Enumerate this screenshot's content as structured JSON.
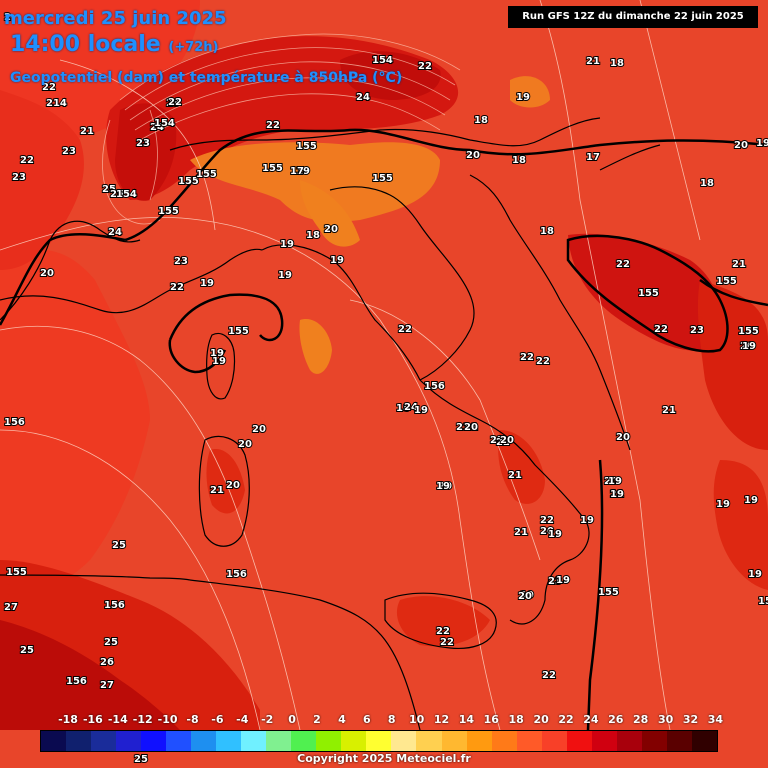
{
  "header": {
    "date_line": "mercredi 25 juin 2025",
    "time_line": "14:00 locale",
    "time_offset": "(+72h)",
    "parameter_line": "Geopotentiel (dam) et température à 850hPa (°C)",
    "run_info": "Run GFS 12Z du dimanche 22 juin 2025"
  },
  "legend": {
    "ticks": [
      "-18",
      "-16",
      "-14",
      "-12",
      "-10",
      "-8",
      "-6",
      "-4",
      "-2",
      "0",
      "2",
      "4",
      "6",
      "8",
      "10",
      "12",
      "14",
      "16",
      "18",
      "20",
      "22",
      "24",
      "26",
      "28",
      "30",
      "32",
      "34"
    ],
    "colors": [
      "#0a0a50",
      "#10206e",
      "#1a2c9a",
      "#2020d0",
      "#1010ff",
      "#2050ff",
      "#1e8ff0",
      "#30c0ff",
      "#70f0ff",
      "#80f090",
      "#50f050",
      "#90f000",
      "#d8f000",
      "#ffff30",
      "#ffe890",
      "#ffd050",
      "#ffb830",
      "#ff9a10",
      "#ff7a18",
      "#ff5a28",
      "#f84028",
      "#f01010",
      "#d00010",
      "#a8000c",
      "#820000",
      "#5a0000",
      "#300000"
    ]
  },
  "copyright": "Copyright 2025 Meteociel.fr",
  "map_labels": {
    "temperature": [
      "2",
      "22",
      "214",
      "21",
      "22",
      "23",
      "23",
      "25",
      "25",
      "24",
      "20",
      "23",
      "23",
      "22",
      "22",
      "24",
      "24",
      "23",
      "22",
      "22",
      "20",
      "19",
      "18",
      "18",
      "18",
      "17",
      "18",
      "20",
      "19",
      "18",
      "19",
      "19",
      "19",
      "19",
      "19",
      "19",
      "20",
      "20",
      "21",
      "20",
      "18",
      "22",
      "21",
      "21",
      "22",
      "20",
      "21",
      "22",
      "20",
      "19",
      "20",
      "21",
      "20",
      "22",
      "21",
      "22",
      "22",
      "23",
      "21",
      "20",
      "19",
      "19",
      "19",
      "19",
      "21",
      "22",
      "23",
      "22",
      "25",
      "26",
      "25",
      "27",
      "27",
      "25",
      "25",
      "24",
      "19",
      "19",
      "17",
      "20",
      "19",
      "18",
      "22",
      "19",
      "22",
      "22",
      "21",
      "20",
      "19",
      "19",
      "20",
      "20",
      "19",
      "19"
    ],
    "geopotential": [
      "154",
      "154",
      "154",
      "155",
      "155",
      "155",
      "155",
      "155",
      "155",
      "155",
      "155",
      "156",
      "156",
      "156",
      "156",
      "156",
      "155",
      "155",
      "155",
      "155",
      "154"
    ]
  }
}
